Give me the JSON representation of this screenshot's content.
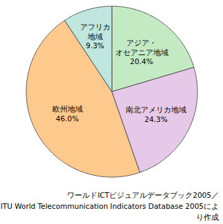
{
  "chart_data": {
    "type": "pie",
    "categories": [
      "アジア・オセアニア地域",
      "南北アメリカ地域",
      "欧州地域",
      "アフリカ地域"
    ],
    "values": [
      20.4,
      24.3,
      46.0,
      9.3
    ],
    "value_labels": [
      "20.4%",
      "24.3%",
      "46.0%",
      "9.3%"
    ],
    "colors": [
      "#c4eac4",
      "#e6c8e8",
      "#fdc98c",
      "#bfe6df"
    ],
    "data_labels": true,
    "annotations": [
      "ワールドICTビジュアルデータブック2005／",
      "ITU World Telecommunication Indicators Database 2005により作成"
    ]
  }
}
